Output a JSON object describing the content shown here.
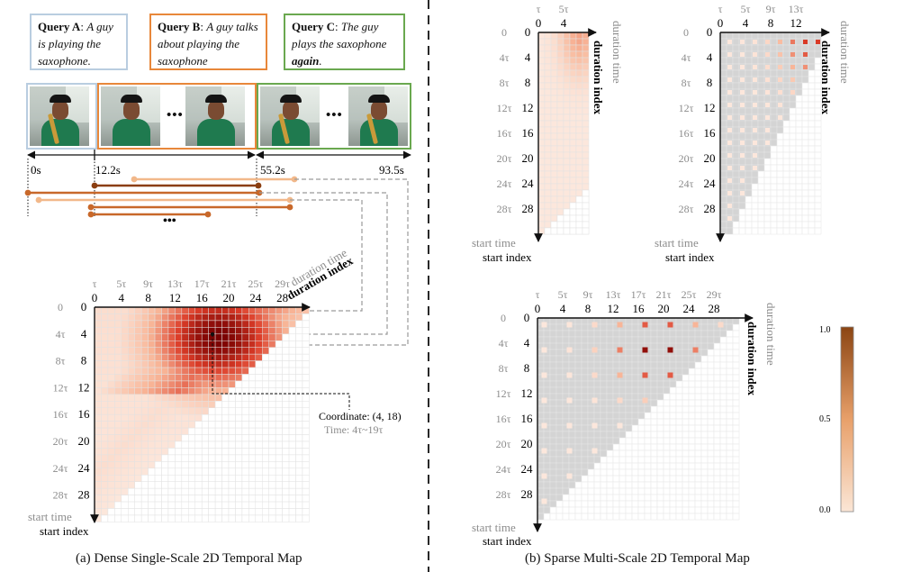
{
  "queries": [
    {
      "label": "Query A",
      "text": "A guy is playing the saxophone."
    },
    {
      "label": "Query B",
      "text": "A guy talks about playing the saxophone"
    },
    {
      "label": "Query C",
      "text": "The guy plays the saxophone",
      "emph": "again",
      "end": "."
    }
  ],
  "timeline": {
    "t0": "0s",
    "t1": "12.2s",
    "t2": "55.2s",
    "t3": "93.5s"
  },
  "ellipsis": "•••",
  "axis_text": {
    "duration_time": "duration time",
    "duration_index": "duration index",
    "start_time": "start time",
    "start_index": "start index"
  },
  "dense_map": {
    "top_tau": [
      "τ",
      "5τ",
      "9τ",
      "13τ",
      "17τ",
      "21τ",
      "25τ",
      "29τ"
    ],
    "top_index": [
      "0",
      "4",
      "8",
      "12",
      "16",
      "20",
      "24",
      "28"
    ],
    "left_tau": [
      "0",
      "4τ",
      "8τ",
      "12τ",
      "16τ",
      "20τ",
      "24τ",
      "28τ"
    ],
    "left_index": [
      "0",
      "4",
      "8",
      "12",
      "16",
      "20",
      "24",
      "28"
    ],
    "coordinate": "Coordinate: (4, 18)",
    "time": "Time: 4τ~19τ",
    "caption": "(a) Dense Single-Scale 2D Temporal Map"
  },
  "sparse_small_1": {
    "top_tau": [
      "τ",
      "5τ"
    ],
    "top_index": [
      "0",
      "4"
    ],
    "left_tau": [
      "0",
      "4τ",
      "8τ",
      "12τ",
      "16τ",
      "20τ",
      "24τ",
      "28τ"
    ],
    "left_index": [
      "0",
      "4",
      "8",
      "12",
      "16",
      "20",
      "24",
      "28"
    ]
  },
  "sparse_small_2": {
    "top_tau": [
      "τ",
      "5τ",
      "9τ",
      "13τ"
    ],
    "top_index": [
      "0",
      "4",
      "8",
      "12"
    ],
    "left_tau": [
      "0",
      "4τ",
      "8τ",
      "12τ",
      "16τ",
      "20τ",
      "24τ",
      "28τ"
    ],
    "left_index": [
      "0",
      "4",
      "8",
      "12",
      "16",
      "20",
      "24",
      "28"
    ]
  },
  "sparse_map": {
    "top_tau": [
      "τ",
      "5τ",
      "9τ",
      "13τ",
      "17τ",
      "21τ",
      "25τ",
      "29τ"
    ],
    "top_index": [
      "0",
      "4",
      "8",
      "12",
      "16",
      "20",
      "24",
      "28"
    ],
    "left_tau": [
      "0",
      "4τ",
      "8τ",
      "12τ",
      "16τ",
      "20τ",
      "24τ",
      "28τ"
    ],
    "left_index": [
      "0",
      "4",
      "8",
      "12",
      "16",
      "20",
      "24",
      "28"
    ],
    "caption": "(b) Sparse Multi-Scale 2D Temporal Map"
  },
  "colorbar": {
    "max": "1.0",
    "mid": "0.5",
    "min": "0.0"
  },
  "colors": {
    "query_a": "#b9cde0",
    "query_b": "#e8873a",
    "query_c": "#6aa84f",
    "heat_low": "#fdeee6",
    "heat_high": "#8b0000",
    "grid": "#d9d9d9",
    "masked": "#d4d4d4"
  }
}
